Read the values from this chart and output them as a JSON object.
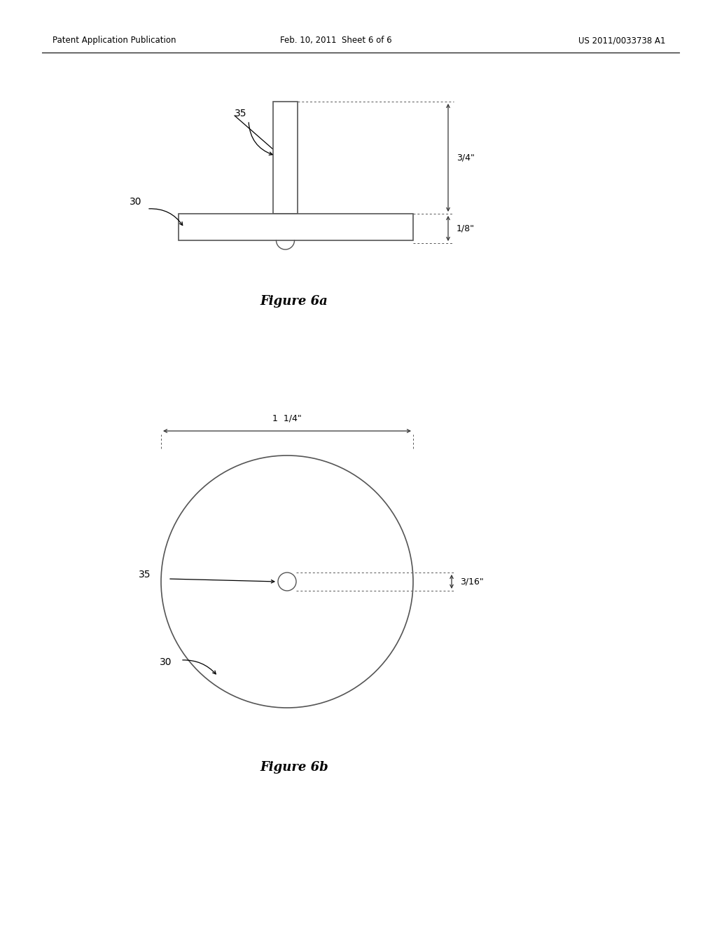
{
  "background_color": "#ffffff",
  "header_left": "Patent Application Publication",
  "header_center": "Feb. 10, 2011  Sheet 6 of 6",
  "header_right": "US 2011/0033738 A1",
  "fig6a_title": "Figure 6a",
  "fig6b_title": "Figure 6b",
  "label_30_a": "30",
  "label_35_a": "35",
  "label_30_b": "30",
  "label_35_b": "35",
  "dim_34_label": "3/4\"",
  "dim_18_label": "1/8\"",
  "dim_114_label": "1  1/4\"",
  "dim_316_label": "3/16\""
}
